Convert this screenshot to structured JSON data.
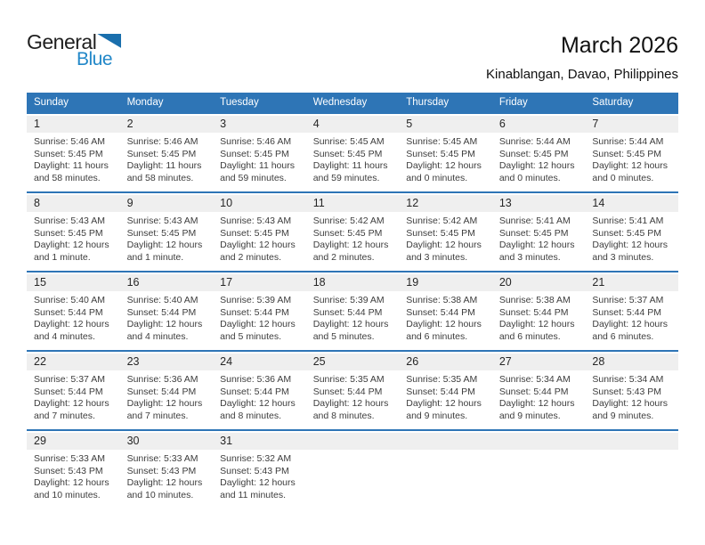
{
  "header": {
    "logo": {
      "general": "General",
      "blue": "Blue"
    },
    "title": "March 2026",
    "subtitle": "Kinablangan, Davao, Philippines"
  },
  "colors": {
    "header_bar_bg": "#2E75B6",
    "header_bar_text": "#FFFFFF",
    "week_divider": "#2E75B6",
    "day_band_bg": "#EFEFEF",
    "body_text": "#3D3D3D",
    "logo_blue_text": "#2187C8",
    "logo_triangle": "#1A6FAD"
  },
  "calendar": {
    "weekdays": [
      "Sunday",
      "Monday",
      "Tuesday",
      "Wednesday",
      "Thursday",
      "Friday",
      "Saturday"
    ],
    "weeks": [
      [
        {
          "day": "1",
          "sunrise": "Sunrise: 5:46 AM",
          "sunset": "Sunset: 5:45 PM",
          "daylight": "Daylight: 11 hours and 58 minutes."
        },
        {
          "day": "2",
          "sunrise": "Sunrise: 5:46 AM",
          "sunset": "Sunset: 5:45 PM",
          "daylight": "Daylight: 11 hours and 58 minutes."
        },
        {
          "day": "3",
          "sunrise": "Sunrise: 5:46 AM",
          "sunset": "Sunset: 5:45 PM",
          "daylight": "Daylight: 11 hours and 59 minutes."
        },
        {
          "day": "4",
          "sunrise": "Sunrise: 5:45 AM",
          "sunset": "Sunset: 5:45 PM",
          "daylight": "Daylight: 11 hours and 59 minutes."
        },
        {
          "day": "5",
          "sunrise": "Sunrise: 5:45 AM",
          "sunset": "Sunset: 5:45 PM",
          "daylight": "Daylight: 12 hours and 0 minutes."
        },
        {
          "day": "6",
          "sunrise": "Sunrise: 5:44 AM",
          "sunset": "Sunset: 5:45 PM",
          "daylight": "Daylight: 12 hours and 0 minutes."
        },
        {
          "day": "7",
          "sunrise": "Sunrise: 5:44 AM",
          "sunset": "Sunset: 5:45 PM",
          "daylight": "Daylight: 12 hours and 0 minutes."
        }
      ],
      [
        {
          "day": "8",
          "sunrise": "Sunrise: 5:43 AM",
          "sunset": "Sunset: 5:45 PM",
          "daylight": "Daylight: 12 hours and 1 minute."
        },
        {
          "day": "9",
          "sunrise": "Sunrise: 5:43 AM",
          "sunset": "Sunset: 5:45 PM",
          "daylight": "Daylight: 12 hours and 1 minute."
        },
        {
          "day": "10",
          "sunrise": "Sunrise: 5:43 AM",
          "sunset": "Sunset: 5:45 PM",
          "daylight": "Daylight: 12 hours and 2 minutes."
        },
        {
          "day": "11",
          "sunrise": "Sunrise: 5:42 AM",
          "sunset": "Sunset: 5:45 PM",
          "daylight": "Daylight: 12 hours and 2 minutes."
        },
        {
          "day": "12",
          "sunrise": "Sunrise: 5:42 AM",
          "sunset": "Sunset: 5:45 PM",
          "daylight": "Daylight: 12 hours and 3 minutes."
        },
        {
          "day": "13",
          "sunrise": "Sunrise: 5:41 AM",
          "sunset": "Sunset: 5:45 PM",
          "daylight": "Daylight: 12 hours and 3 minutes."
        },
        {
          "day": "14",
          "sunrise": "Sunrise: 5:41 AM",
          "sunset": "Sunset: 5:45 PM",
          "daylight": "Daylight: 12 hours and 3 minutes."
        }
      ],
      [
        {
          "day": "15",
          "sunrise": "Sunrise: 5:40 AM",
          "sunset": "Sunset: 5:44 PM",
          "daylight": "Daylight: 12 hours and 4 minutes."
        },
        {
          "day": "16",
          "sunrise": "Sunrise: 5:40 AM",
          "sunset": "Sunset: 5:44 PM",
          "daylight": "Daylight: 12 hours and 4 minutes."
        },
        {
          "day": "17",
          "sunrise": "Sunrise: 5:39 AM",
          "sunset": "Sunset: 5:44 PM",
          "daylight": "Daylight: 12 hours and 5 minutes."
        },
        {
          "day": "18",
          "sunrise": "Sunrise: 5:39 AM",
          "sunset": "Sunset: 5:44 PM",
          "daylight": "Daylight: 12 hours and 5 minutes."
        },
        {
          "day": "19",
          "sunrise": "Sunrise: 5:38 AM",
          "sunset": "Sunset: 5:44 PM",
          "daylight": "Daylight: 12 hours and 6 minutes."
        },
        {
          "day": "20",
          "sunrise": "Sunrise: 5:38 AM",
          "sunset": "Sunset: 5:44 PM",
          "daylight": "Daylight: 12 hours and 6 minutes."
        },
        {
          "day": "21",
          "sunrise": "Sunrise: 5:37 AM",
          "sunset": "Sunset: 5:44 PM",
          "daylight": "Daylight: 12 hours and 6 minutes."
        }
      ],
      [
        {
          "day": "22",
          "sunrise": "Sunrise: 5:37 AM",
          "sunset": "Sunset: 5:44 PM",
          "daylight": "Daylight: 12 hours and 7 minutes."
        },
        {
          "day": "23",
          "sunrise": "Sunrise: 5:36 AM",
          "sunset": "Sunset: 5:44 PM",
          "daylight": "Daylight: 12 hours and 7 minutes."
        },
        {
          "day": "24",
          "sunrise": "Sunrise: 5:36 AM",
          "sunset": "Sunset: 5:44 PM",
          "daylight": "Daylight: 12 hours and 8 minutes."
        },
        {
          "day": "25",
          "sunrise": "Sunrise: 5:35 AM",
          "sunset": "Sunset: 5:44 PM",
          "daylight": "Daylight: 12 hours and 8 minutes."
        },
        {
          "day": "26",
          "sunrise": "Sunrise: 5:35 AM",
          "sunset": "Sunset: 5:44 PM",
          "daylight": "Daylight: 12 hours and 9 minutes."
        },
        {
          "day": "27",
          "sunrise": "Sunrise: 5:34 AM",
          "sunset": "Sunset: 5:44 PM",
          "daylight": "Daylight: 12 hours and 9 minutes."
        },
        {
          "day": "28",
          "sunrise": "Sunrise: 5:34 AM",
          "sunset": "Sunset: 5:43 PM",
          "daylight": "Daylight: 12 hours and 9 minutes."
        }
      ],
      [
        {
          "day": "29",
          "sunrise": "Sunrise: 5:33 AM",
          "sunset": "Sunset: 5:43 PM",
          "daylight": "Daylight: 12 hours and 10 minutes."
        },
        {
          "day": "30",
          "sunrise": "Sunrise: 5:33 AM",
          "sunset": "Sunset: 5:43 PM",
          "daylight": "Daylight: 12 hours and 10 minutes."
        },
        {
          "day": "31",
          "sunrise": "Sunrise: 5:32 AM",
          "sunset": "Sunset: 5:43 PM",
          "daylight": "Daylight: 12 hours and 11 minutes."
        },
        null,
        null,
        null,
        null
      ]
    ]
  }
}
